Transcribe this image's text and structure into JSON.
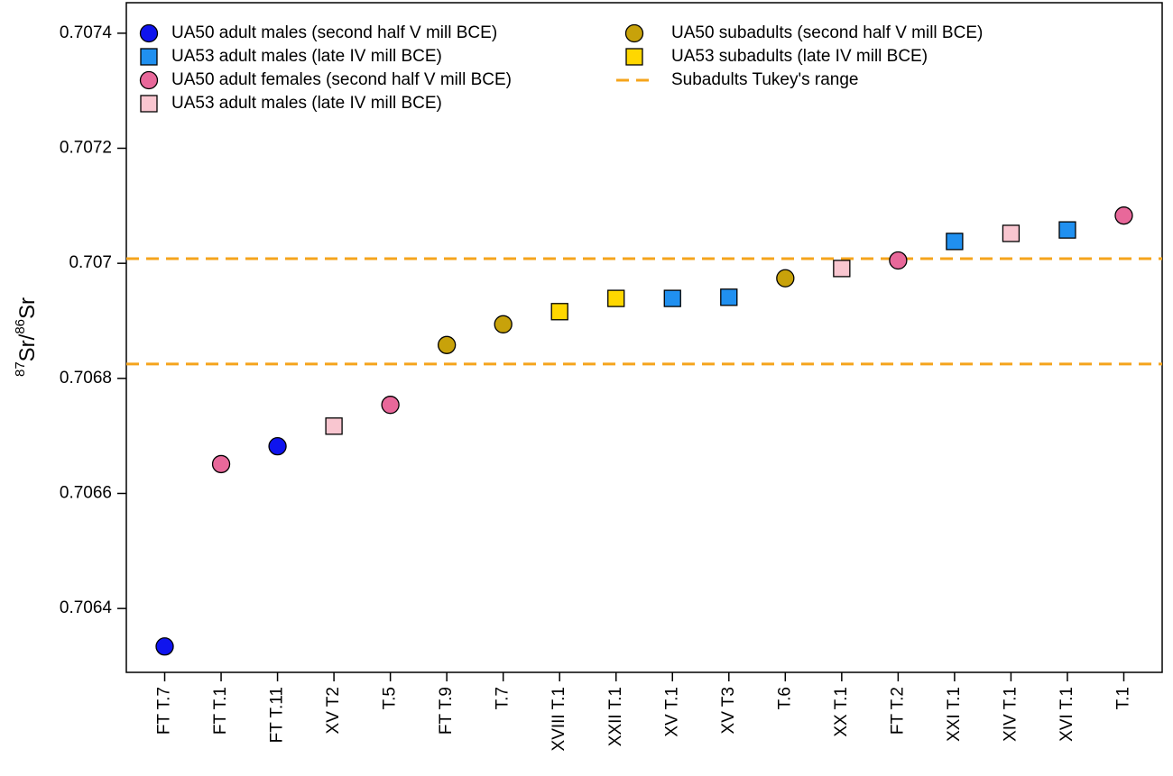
{
  "chart_data": {
    "type": "scatter",
    "ylabel_parts": [
      {
        "text": "87",
        "sup": true
      },
      {
        "text": "Sr/",
        "sup": false
      },
      {
        "text": "86",
        "sup": true
      },
      {
        "text": "Sr",
        "sup": false
      }
    ],
    "categories": [
      "FT T.7",
      "FT  T.1",
      "FT T.11",
      "XV T2",
      "T.5",
      "FT T.9",
      "T.7",
      "XVIII T.1",
      "XXII T.1",
      "XV T.1",
      "XV T3",
      "T.6",
      "XX T.1",
      "FT  T.2",
      "XXI T.1",
      "XIV T.1",
      "XVI T.1",
      "T.1"
    ],
    "series": [
      {
        "name": "UA50 adult males (second half V mill BCE)",
        "color": "#0f14ee",
        "marker": "circle",
        "values": [
          0.706334,
          null,
          0.706682,
          null,
          null,
          null,
          null,
          null,
          null,
          null,
          null,
          null,
          null,
          null,
          null,
          null,
          null,
          null
        ]
      },
      {
        "name": "UA53 adult males (late IV mill BCE)",
        "color": "#2090f0",
        "marker": "square",
        "values": [
          null,
          null,
          null,
          null,
          null,
          null,
          null,
          null,
          null,
          0.706939,
          0.706941,
          null,
          null,
          null,
          0.707038,
          null,
          0.707058,
          null
        ]
      },
      {
        "name": "UA50 adult females (second half V mill BCE)",
        "color": "#e8689a",
        "marker": "circle",
        "values": [
          null,
          0.706651,
          null,
          null,
          0.706754,
          null,
          null,
          null,
          null,
          null,
          null,
          null,
          null,
          0.707005,
          null,
          null,
          null,
          0.707083
        ]
      },
      {
        "name": "UA53 adult males (late IV mill BCE)",
        "color": "#f9c6d0",
        "marker": "square",
        "values": [
          null,
          null,
          null,
          0.706717,
          null,
          null,
          null,
          null,
          null,
          null,
          null,
          null,
          0.706991,
          null,
          null,
          0.707052,
          null,
          null
        ]
      },
      {
        "name": "UA50 subadults (second half V mill BCE)",
        "color": "#c8a20a",
        "marker": "circle",
        "values": [
          null,
          null,
          null,
          null,
          null,
          0.706858,
          0.706894,
          null,
          null,
          null,
          null,
          0.706974,
          null,
          null,
          null,
          null,
          null,
          null
        ]
      },
      {
        "name": "UA53 subadults (late IV mill BCE)",
        "color": "#ffd700",
        "marker": "square",
        "values": [
          null,
          null,
          null,
          null,
          null,
          null,
          null,
          0.706916,
          0.706939,
          null,
          null,
          null,
          null,
          null,
          null,
          null,
          null,
          null
        ]
      }
    ],
    "reference_lines": {
      "name": "Subadults Tukey's range",
      "color": "#f5a41c",
      "values": [
        0.706825,
        0.707008
      ]
    },
    "ylim": [
      0.706289,
      0.707453
    ],
    "yticks": [
      0.7064,
      0.7066,
      0.7068,
      0.707,
      0.7072,
      0.7074
    ]
  }
}
